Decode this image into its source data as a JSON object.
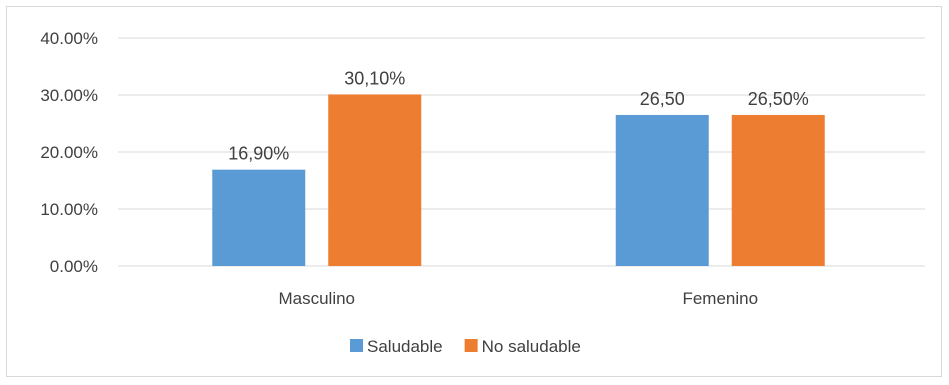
{
  "chart_data": {
    "type": "bar",
    "categories": [
      "Masculino",
      "Femenino"
    ],
    "series": [
      {
        "name": "Saludable",
        "values": [
          16.9,
          26.5
        ],
        "labels": [
          "16,90%",
          "26,50"
        ],
        "color": "#5b9bd5"
      },
      {
        "name": "No saludable",
        "values": [
          30.1,
          26.5
        ],
        "labels": [
          "30,10%",
          "26,50%"
        ],
        "color": "#ed7d31"
      }
    ],
    "ylim": [
      0,
      40
    ],
    "yticks": [
      0,
      10,
      20,
      30,
      40
    ],
    "ytick_labels": [
      "0.00%",
      "10.00%",
      "20.00%",
      "30.00%",
      "40.00%"
    ],
    "grid": true,
    "legend_position": "bottom",
    "grid_color": "#d9d9d9"
  }
}
